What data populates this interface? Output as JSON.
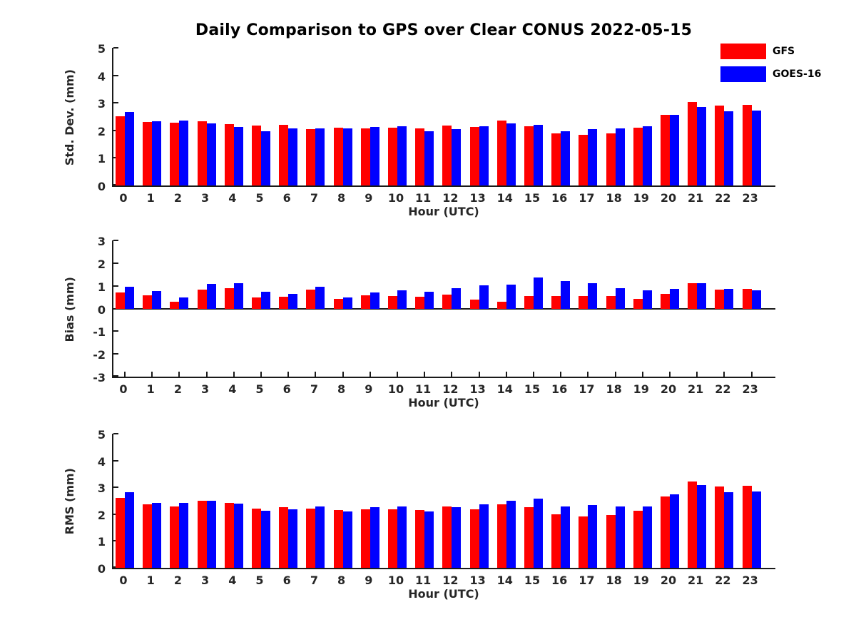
{
  "title": "Daily Comparison to GPS over Clear CONUS 2022-05-15",
  "legend": {
    "position": "top-right",
    "items": [
      {
        "label": "GFS",
        "color": "#ff0000"
      },
      {
        "label": "GOES-16",
        "color": "#0000ff"
      }
    ]
  },
  "chart_data": {
    "type": "bar",
    "title": "Daily Comparison to GPS over Clear CONUS 2022-05-15",
    "grid": false,
    "legend_position": "top-right",
    "categories": [
      "0",
      "1",
      "2",
      "3",
      "4",
      "5",
      "6",
      "7",
      "8",
      "9",
      "10",
      "11",
      "12",
      "13",
      "14",
      "15",
      "16",
      "17",
      "18",
      "19",
      "20",
      "21",
      "22",
      "23"
    ],
    "xlabel": "Hour (UTC)",
    "subplots": [
      {
        "ylabel": "Std. Dev. (mm)",
        "ylim": [
          0,
          5
        ],
        "yticks": [
          0,
          1,
          2,
          3,
          4,
          5
        ],
        "series": [
          {
            "name": "GFS",
            "color": "#ff0000",
            "values": [
              2.51,
              2.3,
              2.27,
              2.33,
              2.24,
              2.17,
              2.21,
              2.04,
              2.09,
              2.08,
              2.1,
              2.08,
              2.17,
              2.12,
              2.35,
              2.16,
              1.9,
              1.83,
              1.9,
              2.1,
              2.57,
              3.02,
              2.9,
              2.92
            ]
          },
          {
            "name": "GOES-16",
            "color": "#0000ff",
            "values": [
              2.66,
              2.32,
              2.37,
              2.25,
              2.13,
              1.98,
              2.07,
              2.08,
              2.06,
              2.13,
              2.14,
              1.97,
              2.05,
              2.15,
              2.26,
              2.19,
              1.96,
              2.05,
              2.08,
              2.16,
              2.56,
              2.86,
              2.7,
              2.72
            ]
          }
        ]
      },
      {
        "ylabel": "Bias (mm)",
        "ylim": [
          -3,
          3
        ],
        "yticks": [
          -3,
          -2,
          -1,
          0,
          1,
          2,
          3
        ],
        "series": [
          {
            "name": "GFS",
            "color": "#ff0000",
            "values": [
              0.7,
              0.59,
              0.3,
              0.83,
              0.89,
              0.49,
              0.52,
              0.83,
              0.43,
              0.57,
              0.54,
              0.52,
              0.61,
              0.4,
              0.31,
              0.56,
              0.56,
              0.56,
              0.54,
              0.41,
              0.66,
              1.13,
              0.82,
              0.85
            ]
          },
          {
            "name": "GOES-16",
            "color": "#0000ff",
            "values": [
              0.97,
              0.77,
              0.48,
              1.07,
              1.11,
              0.74,
              0.66,
              0.97,
              0.48,
              0.7,
              0.79,
              0.74,
              0.89,
              1.03,
              1.05,
              1.36,
              1.21,
              1.11,
              0.91,
              0.79,
              0.85,
              1.13,
              0.85,
              0.79
            ]
          }
        ]
      },
      {
        "ylabel": "RMS (mm)",
        "ylim": [
          0,
          5
        ],
        "yticks": [
          0,
          1,
          2,
          3,
          4,
          5
        ],
        "series": [
          {
            "name": "GFS",
            "color": "#ff0000",
            "values": [
              2.61,
              2.36,
              2.29,
              2.5,
              2.41,
              2.2,
              2.27,
              2.21,
              2.16,
              2.17,
              2.17,
              2.15,
              2.28,
              2.17,
              2.38,
              2.25,
              2.0,
              1.91,
              1.97,
              2.14,
              2.66,
              3.22,
              3.03,
              3.06
            ]
          },
          {
            "name": "GOES-16",
            "color": "#0000ff",
            "values": [
              2.82,
              2.43,
              2.41,
              2.49,
              2.39,
              2.14,
              2.19,
              2.3,
              2.11,
              2.25,
              2.28,
              2.1,
              2.27,
              2.38,
              2.49,
              2.59,
              2.3,
              2.33,
              2.28,
              2.3,
              2.73,
              3.09,
              2.83,
              2.85
            ]
          }
        ]
      }
    ]
  }
}
